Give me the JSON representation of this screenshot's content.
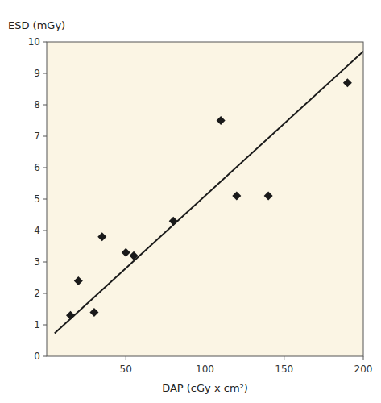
{
  "chart_data": {
    "type": "scatter",
    "xlabel": "DAP (cGy x cm²)",
    "ylabel": "ESD (mGy)",
    "xlim": [
      0,
      200
    ],
    "ylim": [
      0,
      10
    ],
    "xticks": [
      50,
      100,
      150,
      200
    ],
    "yticks": [
      0,
      1,
      2,
      3,
      4,
      5,
      6,
      7,
      8,
      9,
      10
    ],
    "grid": false,
    "series": [
      {
        "type": "scatter",
        "color": "#1a1a1a",
        "marker": "diamond",
        "x": [
          15,
          20,
          30,
          35,
          50,
          55,
          80,
          110,
          120,
          140,
          190
        ],
        "values": [
          1.3,
          2.4,
          1.4,
          3.8,
          3.3,
          3.2,
          4.3,
          7.5,
          5.1,
          5.1,
          8.7
        ]
      },
      {
        "type": "line",
        "color": "#1a1a1a",
        "x": [
          5,
          200
        ],
        "values": [
          0.73,
          9.7
        ]
      }
    ]
  }
}
